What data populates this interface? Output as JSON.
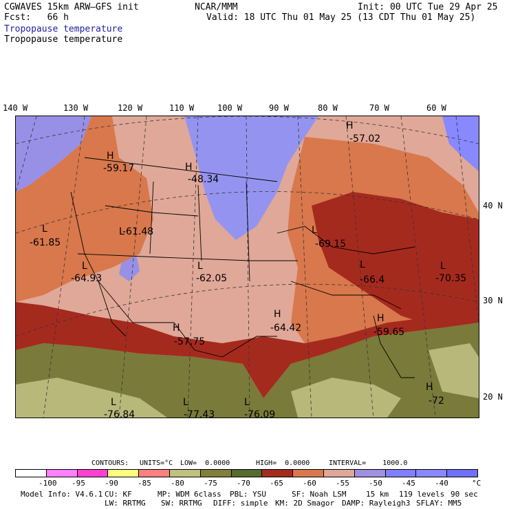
{
  "header": {
    "model": "CGWAVES 15km ARW–GFS init",
    "fcst": "Fcst:   66 h",
    "org": "NCAR/MMM",
    "init": "Init: 00 UTC Tue 29 Apr 25",
    "valid": "Valid: 18 UTC Thu 01 May 25 (13 CDT Thu 01 May 25)",
    "field_title_1": "Tropopause temperature",
    "field_title_2": "Tropopause temperature"
  },
  "longitude_labels": [
    "140 W",
    "130 W",
    "120 W",
    "110 W",
    "100 W",
    "90 W",
    "80 W",
    "70 W",
    "60 W"
  ],
  "latitude_labels": [
    "40 N",
    "30 N",
    "20 N"
  ],
  "annotations": [
    {
      "type": "H",
      "value": "-57.02"
    },
    {
      "type": "H",
      "value": "-59.17"
    },
    {
      "type": "H",
      "value": "-48.34"
    },
    {
      "type": "L",
      "value": "-61.85"
    },
    {
      "type": "L",
      "value": "-61.48"
    },
    {
      "type": "L",
      "value": "-69.15"
    },
    {
      "type": "L",
      "value": "-64.93"
    },
    {
      "type": "L",
      "value": "-62.05"
    },
    {
      "type": "L",
      "value": "-66.4"
    },
    {
      "type": "L",
      "value": "-70.35"
    },
    {
      "type": "H",
      "value": "-64.42"
    },
    {
      "type": "H",
      "value": "-57.75"
    },
    {
      "type": "H",
      "value": "-59.65"
    },
    {
      "type": "H",
      "value": "-72"
    },
    {
      "type": "L",
      "value": "-76.84"
    },
    {
      "type": "L",
      "value": "-77.43"
    },
    {
      "type": "L",
      "value": "-76.09"
    }
  ],
  "contours_line": {
    "contours_label": "CONTOURS:",
    "units": "UNITS=°C",
    "low": "LOW=  0.0000",
    "high": "HIGH=  0.0000",
    "interval": "INTERVAL=    1000.0"
  },
  "colorbar": {
    "colors": [
      "#ffffff",
      "#ff80ff",
      "#ff40d0",
      "#ffff80",
      "#ff8080",
      "#c0c080",
      "#80803c",
      "#556b2f",
      "#a52a1e",
      "#d8784c",
      "#e0a898",
      "#a090e0",
      "#8080ff",
      "#8888ff",
      "#7070ff"
    ],
    "labels": [
      "-100",
      "-95",
      "-90",
      "-85",
      "-80",
      "-75",
      "-70",
      "-65",
      "-60",
      "-55",
      "-50",
      "-45",
      "-40",
      "°C"
    ]
  },
  "footer": {
    "model_info": "Model Info: V4.6.1",
    "cu": "CU: KF",
    "mp": "MP: WDM 6class",
    "pbl": "PBL: YSU",
    "sf": "SF: Noah LSM",
    "res": "15 km",
    "levels": "119 levels",
    "dt": "90 sec",
    "lw": "LW: RRTMG",
    "sw": "SW: RRTMG",
    "diff": "DIFF: simple",
    "km": "KM: 2D Smagor",
    "damp": "DAMP: Rayleigh3",
    "sflay": "SFLAY: MM5"
  }
}
